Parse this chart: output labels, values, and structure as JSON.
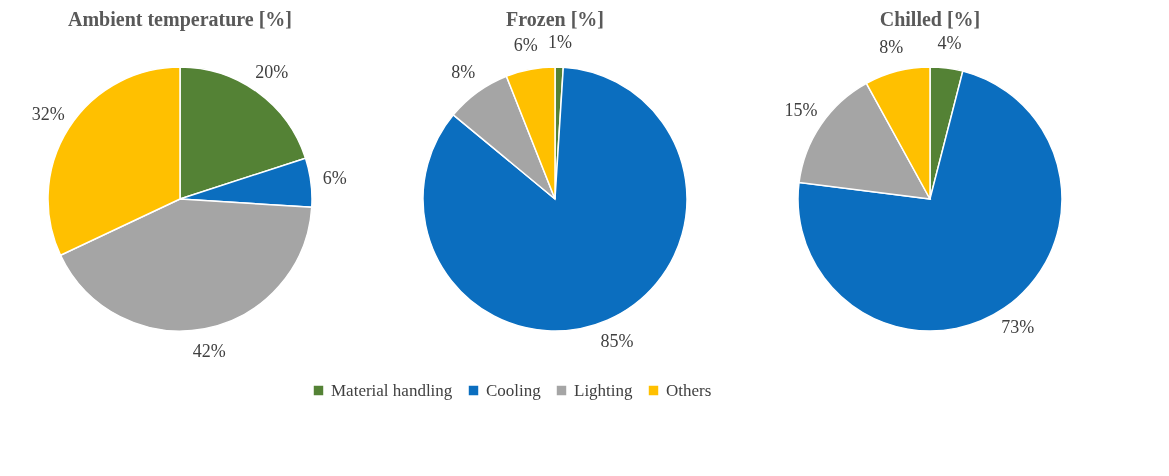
{
  "chart_data": [
    {
      "type": "pie",
      "title": "Ambient temperature [%]",
      "categories": [
        "Material handling",
        "Cooling",
        "Lighting",
        "Others"
      ],
      "values": [
        20,
        6,
        42,
        32
      ],
      "colors": [
        "#548235",
        "#0b6ebf",
        "#a5a5a5",
        "#ffc000"
      ],
      "value_labels": [
        "20%",
        "6%",
        "42%",
        "32%"
      ],
      "legend": "bottom"
    },
    {
      "type": "pie",
      "title": "Frozen [%]",
      "values": [
        1,
        85,
        8,
        6
      ],
      "colors": [
        "#548235",
        "#0b6ebf",
        "#a5a5a5",
        "#ffc000"
      ],
      "value_labels": [
        "1%",
        "85%",
        "8%",
        "6%"
      ]
    },
    {
      "type": "pie",
      "title": "Chilled [%]",
      "values": [
        4,
        73,
        15,
        8
      ],
      "colors": [
        "#548235",
        "#0b6ebf",
        "#a5a5a5",
        "#ffc000"
      ],
      "value_labels": [
        "4%",
        "73%",
        "15%",
        "8%"
      ]
    }
  ]
}
